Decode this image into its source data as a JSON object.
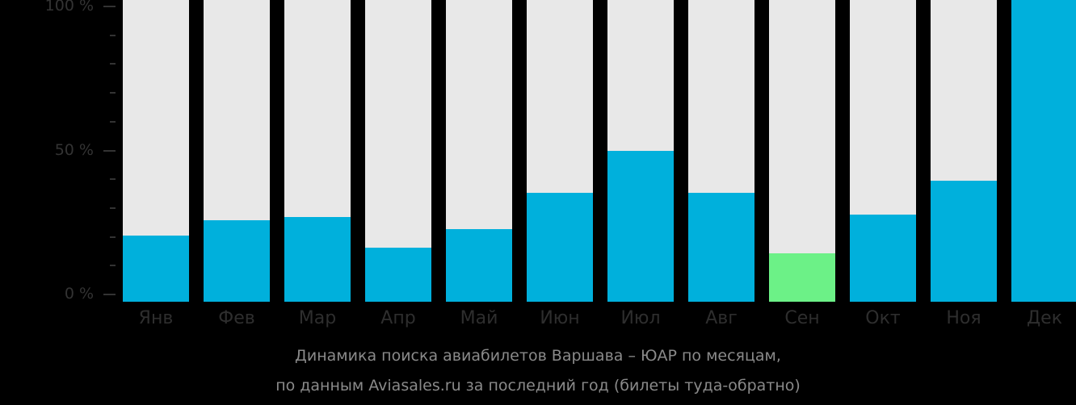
{
  "chart_data": {
    "type": "bar",
    "title": "Динамика поиска авиабилетов Варшава – ЮАР по месяцам, по данным Aviasales.ru за последний год (билеты туда-обратно)",
    "xlabel": "",
    "ylabel": "",
    "ylim": [
      0,
      100
    ],
    "yticks": [
      "0 %",
      "50 %",
      "100 %"
    ],
    "categories": [
      "Янв",
      "Фев",
      "Мар",
      "Апр",
      "Май",
      "Июн",
      "Июл",
      "Авг",
      "Сен",
      "Окт",
      "Ноя",
      "Дек"
    ],
    "values": [
      22,
      27,
      28,
      18,
      24,
      36,
      50,
      36,
      16,
      29,
      40,
      100
    ],
    "highlight": {
      "category": "Сен",
      "color": "#6cf187"
    },
    "colors": {
      "bar": "#00b0dc",
      "background_bar": "#e8e8e8",
      "highlight": "#6cf187"
    },
    "grid": false,
    "legend": null
  },
  "axis": {
    "y_labels": [
      {
        "text": "100 %",
        "pct": 100
      },
      {
        "text": "50 %",
        "pct": 50
      },
      {
        "text": "0 %",
        "pct": 0
      }
    ]
  },
  "caption": {
    "line1": "Динамика поиска авиабилетов Варшава – ЮАР по месяцам,",
    "line2": "по данным Aviasales.ru за последний год (билеты туда-обратно)"
  }
}
